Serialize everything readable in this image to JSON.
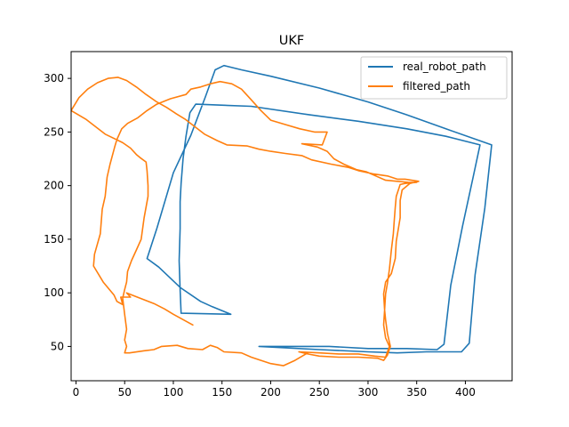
{
  "chart_data": {
    "type": "line",
    "title": "UKF",
    "xlabel": "",
    "ylabel": "",
    "xlim": [
      -5,
      448
    ],
    "ylim": [
      18,
      325
    ],
    "xticks": [
      0,
      50,
      100,
      150,
      200,
      250,
      300,
      350,
      400
    ],
    "yticks": [
      50,
      100,
      150,
      200,
      250,
      300
    ],
    "grid": false,
    "legend_position": "top-right",
    "series": [
      {
        "name": "real_robot_path",
        "color": "#1f77b4",
        "points": [
          [
            159,
            80
          ],
          [
            108,
            81
          ],
          [
            107,
            103
          ],
          [
            106,
            130
          ],
          [
            107,
            160
          ],
          [
            107,
            185
          ],
          [
            108,
            202
          ],
          [
            110,
            225
          ],
          [
            113,
            246
          ],
          [
            117,
            268
          ],
          [
            123,
            276
          ],
          [
            180,
            274
          ],
          [
            240,
            266
          ],
          [
            290,
            260
          ],
          [
            340,
            253
          ],
          [
            380,
            246
          ],
          [
            415,
            238
          ],
          [
            408,
            208
          ],
          [
            397,
            162
          ],
          [
            385,
            107
          ],
          [
            378,
            52
          ],
          [
            371,
            47
          ],
          [
            340,
            48
          ],
          [
            300,
            48
          ],
          [
            260,
            50
          ],
          [
            188,
            50
          ],
          [
            250,
            47
          ],
          [
            300,
            45
          ],
          [
            330,
            44
          ],
          [
            360,
            45
          ],
          [
            396,
            45
          ],
          [
            404,
            53
          ],
          [
            410,
            117
          ],
          [
            420,
            179
          ],
          [
            427,
            238
          ],
          [
            380,
            253
          ],
          [
            340,
            266
          ],
          [
            300,
            278
          ],
          [
            250,
            291
          ],
          [
            200,
            302
          ],
          [
            170,
            308
          ],
          [
            152,
            312
          ],
          [
            143,
            308
          ],
          [
            133,
            283
          ],
          [
            118,
            247
          ],
          [
            100,
            212
          ],
          [
            83,
            160
          ],
          [
            73,
            132
          ],
          [
            85,
            124
          ],
          [
            107,
            105
          ],
          [
            128,
            92
          ],
          [
            140,
            87
          ],
          [
            159,
            80
          ]
        ]
      },
      {
        "name": "filtered_path",
        "color": "#ff7f0e",
        "points": [
          [
            120,
            70
          ],
          [
            100,
            80
          ],
          [
            91,
            85
          ],
          [
            80,
            90
          ],
          [
            60,
            97
          ],
          [
            52,
            100
          ],
          [
            56,
            96
          ],
          [
            46,
            96
          ],
          [
            48,
            89
          ],
          [
            42,
            92
          ],
          [
            39,
            98
          ],
          [
            28,
            110
          ],
          [
            18,
            125
          ],
          [
            19,
            136
          ],
          [
            25,
            155
          ],
          [
            27,
            178
          ],
          [
            30,
            190
          ],
          [
            32,
            208
          ],
          [
            35,
            220
          ],
          [
            40,
            237
          ],
          [
            42,
            243
          ],
          [
            47,
            253
          ],
          [
            53,
            258
          ],
          [
            63,
            263
          ],
          [
            73,
            270
          ],
          [
            83,
            276
          ],
          [
            97,
            281
          ],
          [
            113,
            285
          ],
          [
            118,
            290
          ],
          [
            128,
            292
          ],
          [
            138,
            295
          ],
          [
            148,
            297
          ],
          [
            160,
            295
          ],
          [
            170,
            290
          ],
          [
            180,
            280
          ],
          [
            190,
            270
          ],
          [
            200,
            261
          ],
          [
            215,
            257
          ],
          [
            230,
            253
          ],
          [
            245,
            250
          ],
          [
            258,
            250
          ],
          [
            253,
            238
          ],
          [
            232,
            239
          ],
          [
            248,
            236
          ],
          [
            258,
            232
          ],
          [
            265,
            225
          ],
          [
            275,
            220
          ],
          [
            288,
            215
          ],
          [
            298,
            213
          ],
          [
            308,
            209
          ],
          [
            318,
            205
          ],
          [
            330,
            204
          ],
          [
            342,
            203
          ],
          [
            350,
            203
          ],
          [
            338,
            202
          ],
          [
            333,
            201
          ],
          [
            329,
            190
          ],
          [
            328,
            180
          ],
          [
            327,
            168
          ],
          [
            326,
            155
          ],
          [
            324,
            140
          ],
          [
            322,
            122
          ],
          [
            320,
            109
          ],
          [
            318,
            99
          ],
          [
            317,
            84
          ],
          [
            318,
            75
          ],
          [
            320,
            62
          ],
          [
            323,
            50
          ],
          [
            320,
            42
          ],
          [
            316,
            37
          ],
          [
            310,
            39
          ],
          [
            290,
            40
          ],
          [
            270,
            40
          ],
          [
            250,
            41
          ],
          [
            238,
            43
          ],
          [
            229,
            45
          ],
          [
            250,
            44
          ],
          [
            270,
            43
          ],
          [
            290,
            43
          ],
          [
            307,
            41
          ],
          [
            318,
            40
          ],
          [
            322,
            50
          ],
          [
            318,
            58
          ],
          [
            316,
            70
          ],
          [
            317,
            84
          ],
          [
            316,
            99
          ],
          [
            318,
            110
          ],
          [
            324,
            118
          ],
          [
            328,
            132
          ],
          [
            329,
            148
          ],
          [
            333,
            170
          ],
          [
            333,
            186
          ],
          [
            335,
            196
          ],
          [
            343,
            202
          ],
          [
            352,
            204
          ],
          [
            338,
            206
          ],
          [
            330,
            206
          ],
          [
            320,
            209
          ],
          [
            305,
            211
          ],
          [
            290,
            214
          ],
          [
            280,
            217
          ],
          [
            262,
            220
          ],
          [
            242,
            224
          ],
          [
            232,
            228
          ],
          [
            215,
            230
          ],
          [
            200,
            232
          ],
          [
            188,
            234
          ],
          [
            176,
            237
          ],
          [
            155,
            238
          ],
          [
            145,
            242
          ],
          [
            132,
            248
          ],
          [
            122,
            255
          ],
          [
            112,
            262
          ],
          [
            103,
            267
          ],
          [
            93,
            273
          ],
          [
            83,
            278
          ],
          [
            72,
            285
          ],
          [
            62,
            292
          ],
          [
            52,
            298
          ],
          [
            43,
            301
          ],
          [
            33,
            300
          ],
          [
            22,
            296
          ],
          [
            12,
            290
          ],
          [
            3,
            282
          ],
          [
            -5,
            270
          ],
          [
            10,
            262
          ],
          [
            30,
            248
          ],
          [
            48,
            240
          ],
          [
            56,
            235
          ],
          [
            62,
            229
          ],
          [
            66,
            226
          ],
          [
            72,
            222
          ],
          [
            73,
            214
          ],
          [
            74,
            200
          ],
          [
            74,
            190
          ],
          [
            70,
            170
          ],
          [
            67,
            150
          ],
          [
            62,
            140
          ],
          [
            57,
            130
          ],
          [
            53,
            120
          ],
          [
            52,
            110
          ],
          [
            50,
            103
          ],
          [
            48,
            95
          ],
          [
            50,
            80
          ],
          [
            52,
            66
          ],
          [
            50,
            56
          ],
          [
            52,
            50
          ],
          [
            50,
            44
          ],
          [
            55,
            44
          ],
          [
            70,
            46
          ],
          [
            80,
            47
          ],
          [
            88,
            50
          ],
          [
            104,
            51
          ],
          [
            115,
            48
          ],
          [
            130,
            47
          ],
          [
            138,
            51
          ],
          [
            145,
            49
          ],
          [
            152,
            45
          ],
          [
            170,
            44
          ],
          [
            180,
            40
          ],
          [
            190,
            37
          ],
          [
            200,
            34
          ],
          [
            213,
            32
          ],
          [
            225,
            37
          ],
          [
            238,
            44
          ]
        ]
      }
    ]
  }
}
